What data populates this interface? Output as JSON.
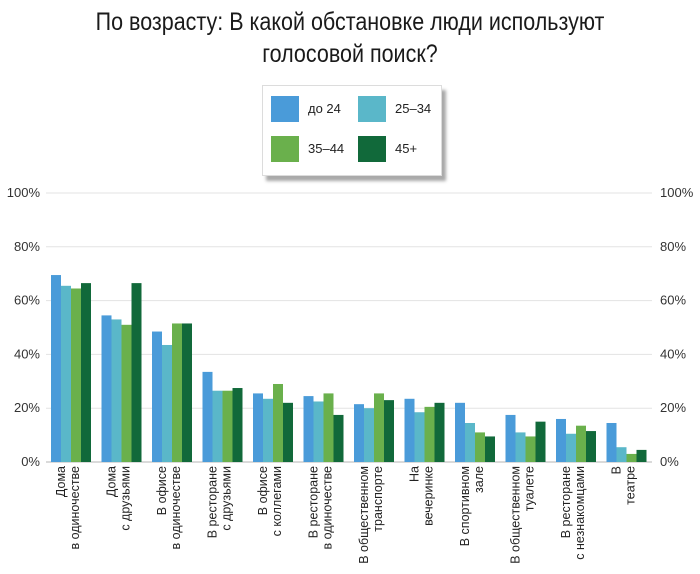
{
  "chart_data": {
    "type": "bar",
    "title_lines": [
      "По возрасту: В какой обстановке люди используют",
      "голосовой поиск?"
    ],
    "categories": [
      [
        "Дома",
        "в одиночестве"
      ],
      [
        "Дома",
        "с друзьями"
      ],
      [
        "В офисе",
        "в одиночестве"
      ],
      [
        "В ресторане",
        "с друзьями"
      ],
      [
        "В офисе",
        "с коллегами"
      ],
      [
        "В ресторане",
        "в одиночестве"
      ],
      [
        "В общественном",
        "транспорте"
      ],
      [
        "На",
        "вечеринке"
      ],
      [
        "В спортивном",
        "зале"
      ],
      [
        "В общественном",
        "туалете"
      ],
      [
        "В ресторане",
        "с незнакомцами"
      ],
      [
        "В",
        "театре"
      ]
    ],
    "series": [
      {
        "name": "до 24",
        "color": "#4a9bd9",
        "values": [
          69.5,
          54.5,
          48.5,
          33.5,
          25.5,
          24.5,
          21.5,
          23.5,
          22,
          17.5,
          16,
          14.5
        ]
      },
      {
        "name": "25–34",
        "color": "#5ab7c9",
        "values": [
          65.5,
          53,
          43.5,
          26.5,
          23.5,
          22.5,
          20,
          18.5,
          14.5,
          11,
          10.5,
          5.5
        ]
      },
      {
        "name": "35–44",
        "color": "#6ab04c",
        "values": [
          64.5,
          51,
          51.5,
          26.5,
          29,
          25.5,
          25.5,
          20.5,
          11,
          9.5,
          13.5,
          3
        ]
      },
      {
        "name": "45+",
        "color": "#11693a",
        "values": [
          66.5,
          66.5,
          51.5,
          27.5,
          22,
          17.5,
          23,
          22,
          9.5,
          15,
          11.5,
          4.5
        ]
      }
    ],
    "yticks": [
      "0%",
      "20%",
      "40%",
      "60%",
      "80%",
      "100%"
    ],
    "ylim": [
      0,
      100
    ],
    "xlabel": "",
    "ylabel": "",
    "grid": true,
    "legend_position": "top-center"
  }
}
